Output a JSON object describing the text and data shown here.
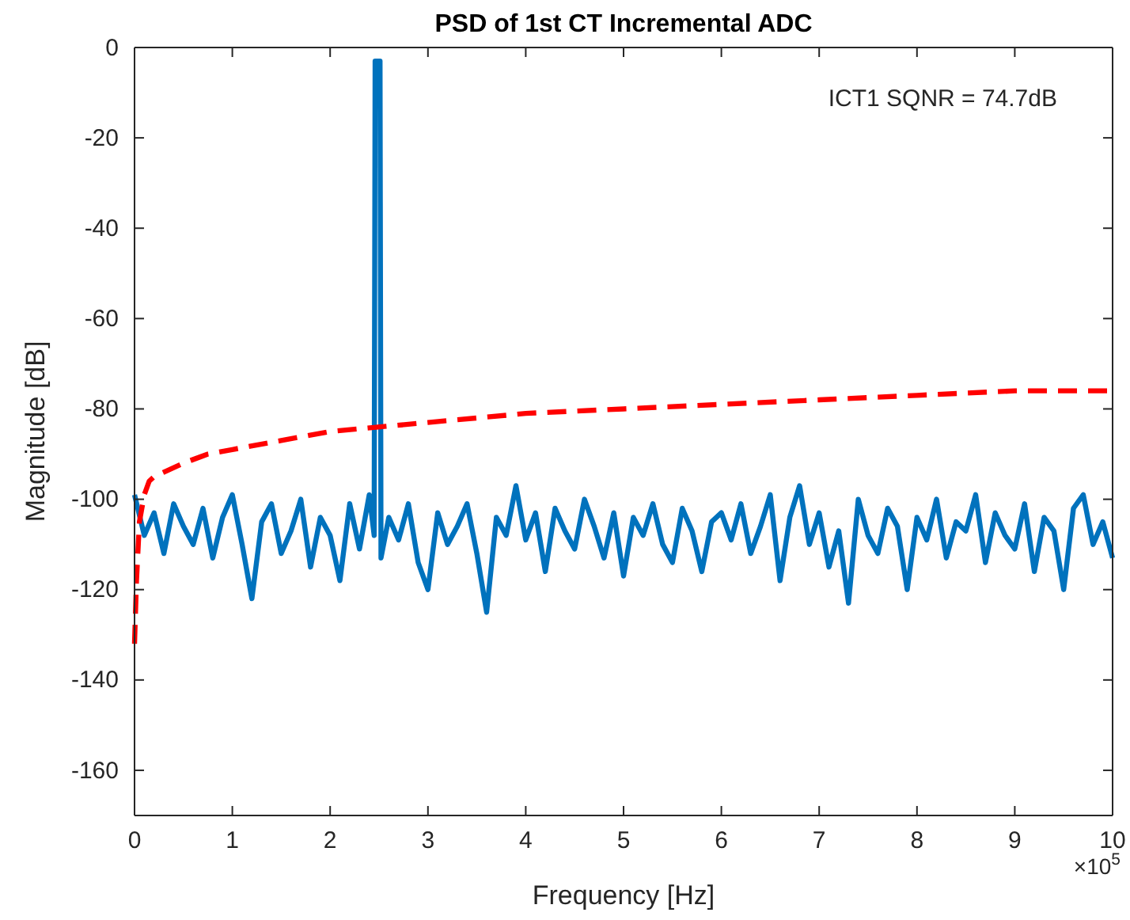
{
  "chart_data": {
    "type": "line",
    "title": "PSD of 1st CT Incremental ADC",
    "xlabel": "Frequency [Hz]",
    "ylabel": "Magnitude [dB]",
    "xlim": [
      0,
      10
    ],
    "ylim": [
      -170,
      0
    ],
    "xticks": [
      0,
      1,
      2,
      3,
      4,
      5,
      6,
      7,
      8,
      9,
      10
    ],
    "yticks": [
      -160,
      -140,
      -120,
      -100,
      -80,
      -60,
      -40,
      -20,
      0
    ],
    "grid": false,
    "marker": "none",
    "annotations": [
      "ICT1 SQNR = 74.7dB",
      "×10$^{5}$"
    ],
    "series": [
      {
        "color": "#0072bd",
        "line_style": "solid",
        "x": [
          0,
          0.1,
          0.2,
          0.3,
          0.4,
          0.5,
          0.6,
          0.7,
          0.8,
          0.9,
          1,
          1.1,
          1.2,
          1.3,
          1.4,
          1.5,
          1.6,
          1.7,
          1.8,
          1.9,
          2,
          2.1,
          2.2,
          2.3,
          2.4,
          2.45,
          2.46,
          2.51,
          2.52,
          2.6,
          2.7,
          2.8,
          2.9,
          3,
          3.1,
          3.2,
          3.3,
          3.4,
          3.5,
          3.6,
          3.7,
          3.8,
          3.9,
          4,
          4.1,
          4.2,
          4.3,
          4.4,
          4.5,
          4.6,
          4.7,
          4.8,
          4.9,
          5,
          5.1,
          5.2,
          5.3,
          5.4,
          5.5,
          5.6,
          5.7,
          5.8,
          5.9,
          6,
          6.1,
          6.2,
          6.3,
          6.4,
          6.5,
          6.6,
          6.7,
          6.8,
          6.9,
          7,
          7.1,
          7.2,
          7.3,
          7.4,
          7.5,
          7.6,
          7.7,
          7.8,
          7.9,
          8,
          8.1,
          8.2,
          8.3,
          8.4,
          8.5,
          8.6,
          8.7,
          8.8,
          8.9,
          9,
          9.1,
          9.2,
          9.3,
          9.4,
          9.5,
          9.6,
          9.7,
          9.8,
          9.9,
          10
        ],
        "values": [
          -99,
          -108,
          -103,
          -112,
          -101,
          -106,
          -110,
          -102,
          -113,
          -104,
          -99,
          -110,
          -122,
          -105,
          -101,
          -112,
          -107,
          -100,
          -115,
          -104,
          -108,
          -118,
          -101,
          -111,
          -99,
          -108,
          -3,
          -3,
          -113,
          -104,
          -109,
          -101,
          -114,
          -120,
          -103,
          -110,
          -106,
          -101,
          -112,
          -125,
          -104,
          -108,
          -97,
          -109,
          -103,
          -116,
          -102,
          -107,
          -111,
          -100,
          -106,
          -113,
          -103,
          -117,
          -104,
          -108,
          -101,
          -110,
          -114,
          -102,
          -107,
          -116,
          -105,
          -103,
          -109,
          -101,
          -112,
          -106,
          -99,
          -118,
          -104,
          -97,
          -110,
          -103,
          -115,
          -107,
          -123,
          -100,
          -108,
          -112,
          -102,
          -106,
          -120,
          -104,
          -109,
          -100,
          -113,
          -105,
          -107,
          -99,
          -114,
          -103,
          -108,
          -111,
          -101,
          -116,
          -104,
          -107,
          -120,
          -102,
          -99,
          -110,
          -105,
          -113
        ]
      },
      {
        "color": "#ff0000",
        "line_style": "dashed",
        "x": [
          0,
          0.02,
          0.05,
          0.1,
          0.15,
          0.2,
          0.3,
          0.5,
          0.75,
          1,
          1.5,
          2,
          3,
          4,
          5,
          6,
          7,
          8,
          9,
          10
        ],
        "values": [
          -132,
          -118,
          -105,
          -99,
          -96,
          -95,
          -94,
          -92,
          -90,
          -89,
          -87,
          -85,
          -83,
          -81,
          -80,
          -79,
          -78,
          -77,
          -76,
          -76
        ]
      }
    ]
  }
}
